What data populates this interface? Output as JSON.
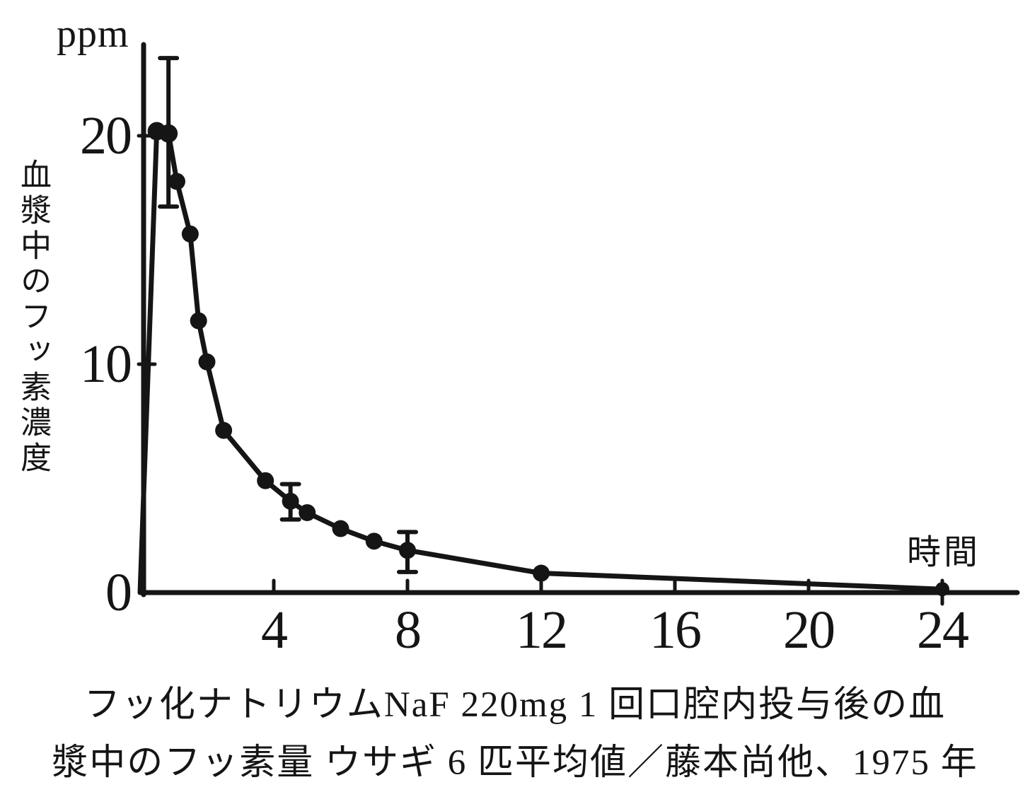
{
  "page": {
    "background": "#ffffff",
    "ink": "#151515"
  },
  "chart_data": {
    "type": "line",
    "style": "scanned black-ink pharmacokinetic curve with filled dots and error bars",
    "y_unit_label": "ppm",
    "y_axis_title": "血漿中のフッ素濃度",
    "x_axis_title": "時間",
    "x_ticks": [
      4,
      8,
      12,
      16,
      20,
      24
    ],
    "y_ticks": [
      0,
      10,
      20
    ],
    "x_range": [
      0,
      26.2
    ],
    "y_range": [
      0,
      24.5
    ],
    "grid": "off",
    "legend": "none",
    "line_starts_at_origin": true,
    "points": [
      {
        "x": 0.5,
        "y": 20.2
      },
      {
        "x": 0.85,
        "y": 20.1,
        "err_up": 3.3,
        "err_dn": 3.2
      },
      {
        "x": 1.1,
        "y": 18.0
      },
      {
        "x": 1.5,
        "y": 15.7
      },
      {
        "x": 1.75,
        "y": 11.9
      },
      {
        "x": 2.0,
        "y": 10.1
      },
      {
        "x": 2.5,
        "y": 7.1
      },
      {
        "x": 3.75,
        "y": 4.9
      },
      {
        "x": 4.5,
        "y": 4.0,
        "err_up": 0.75,
        "err_dn": 0.8
      },
      {
        "x": 5.0,
        "y": 3.5
      },
      {
        "x": 6.0,
        "y": 2.8
      },
      {
        "x": 7.0,
        "y": 2.25
      },
      {
        "x": 8.0,
        "y": 1.85,
        "err_up": 0.8,
        "err_dn": 0.95
      },
      {
        "x": 12.0,
        "y": 0.85
      },
      {
        "x": 24.0,
        "y": 0.15
      }
    ],
    "caption_line1": "フッ化ナトリウムNaF 220mg 1 回口腔内投与後の血",
    "caption_line2": "漿中のフッ素量 ウサギ 6 匹平均値／藤本尚他、1975 年"
  }
}
